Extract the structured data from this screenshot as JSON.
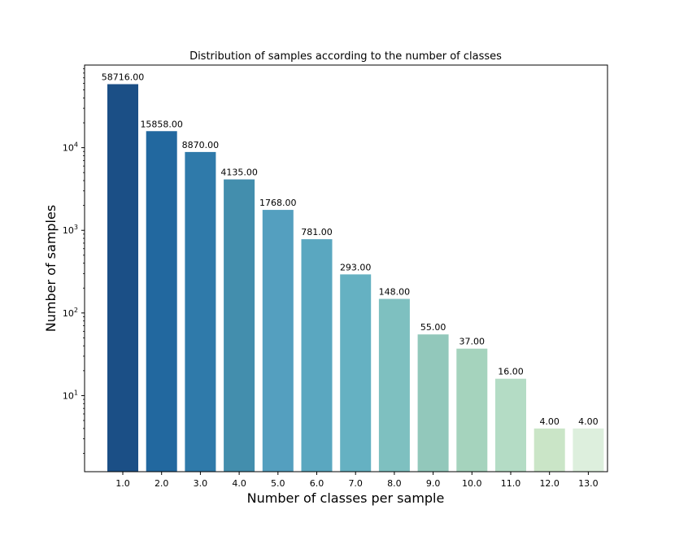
{
  "chart_data": {
    "type": "bar",
    "title": "Distribution of samples according to the number of classes",
    "xlabel": "Number of classes per sample",
    "ylabel": "Number of samples",
    "yscale": "log",
    "ylim": [
      1.2,
      100000
    ],
    "grid": false,
    "legend": "none",
    "categories": [
      "1.0",
      "2.0",
      "3.0",
      "4.0",
      "5.0",
      "6.0",
      "7.0",
      "8.0",
      "9.0",
      "10.0",
      "11.0",
      "12.0",
      "13.0"
    ],
    "values": [
      58716,
      15858,
      8870,
      4135,
      1768,
      781,
      293,
      148,
      55,
      37,
      16,
      4,
      4
    ],
    "value_labels": [
      "58716.00",
      "15858.00",
      "8870.00",
      "4135.00",
      "1768.00",
      "781.00",
      "293.00",
      "148.00",
      "55.00",
      "37.00",
      "16.00",
      "4.00",
      "4.00"
    ],
    "yticks": [
      {
        "value": 10,
        "base": "10",
        "exp": "1"
      },
      {
        "value": 100,
        "base": "10",
        "exp": "2"
      },
      {
        "value": 1000,
        "base": "10",
        "exp": "3"
      },
      {
        "value": 10000,
        "base": "10",
        "exp": "4"
      }
    ],
    "colors": [
      "#1b4f86",
      "#22689f",
      "#2f7aaa",
      "#438ead",
      "#549fbf",
      "#5aa7c0",
      "#65b1c2",
      "#7ec0c0",
      "#92c8bb",
      "#a5d3bd",
      "#b4dcc5",
      "#cae5c7",
      "#ddefdd"
    ]
  }
}
